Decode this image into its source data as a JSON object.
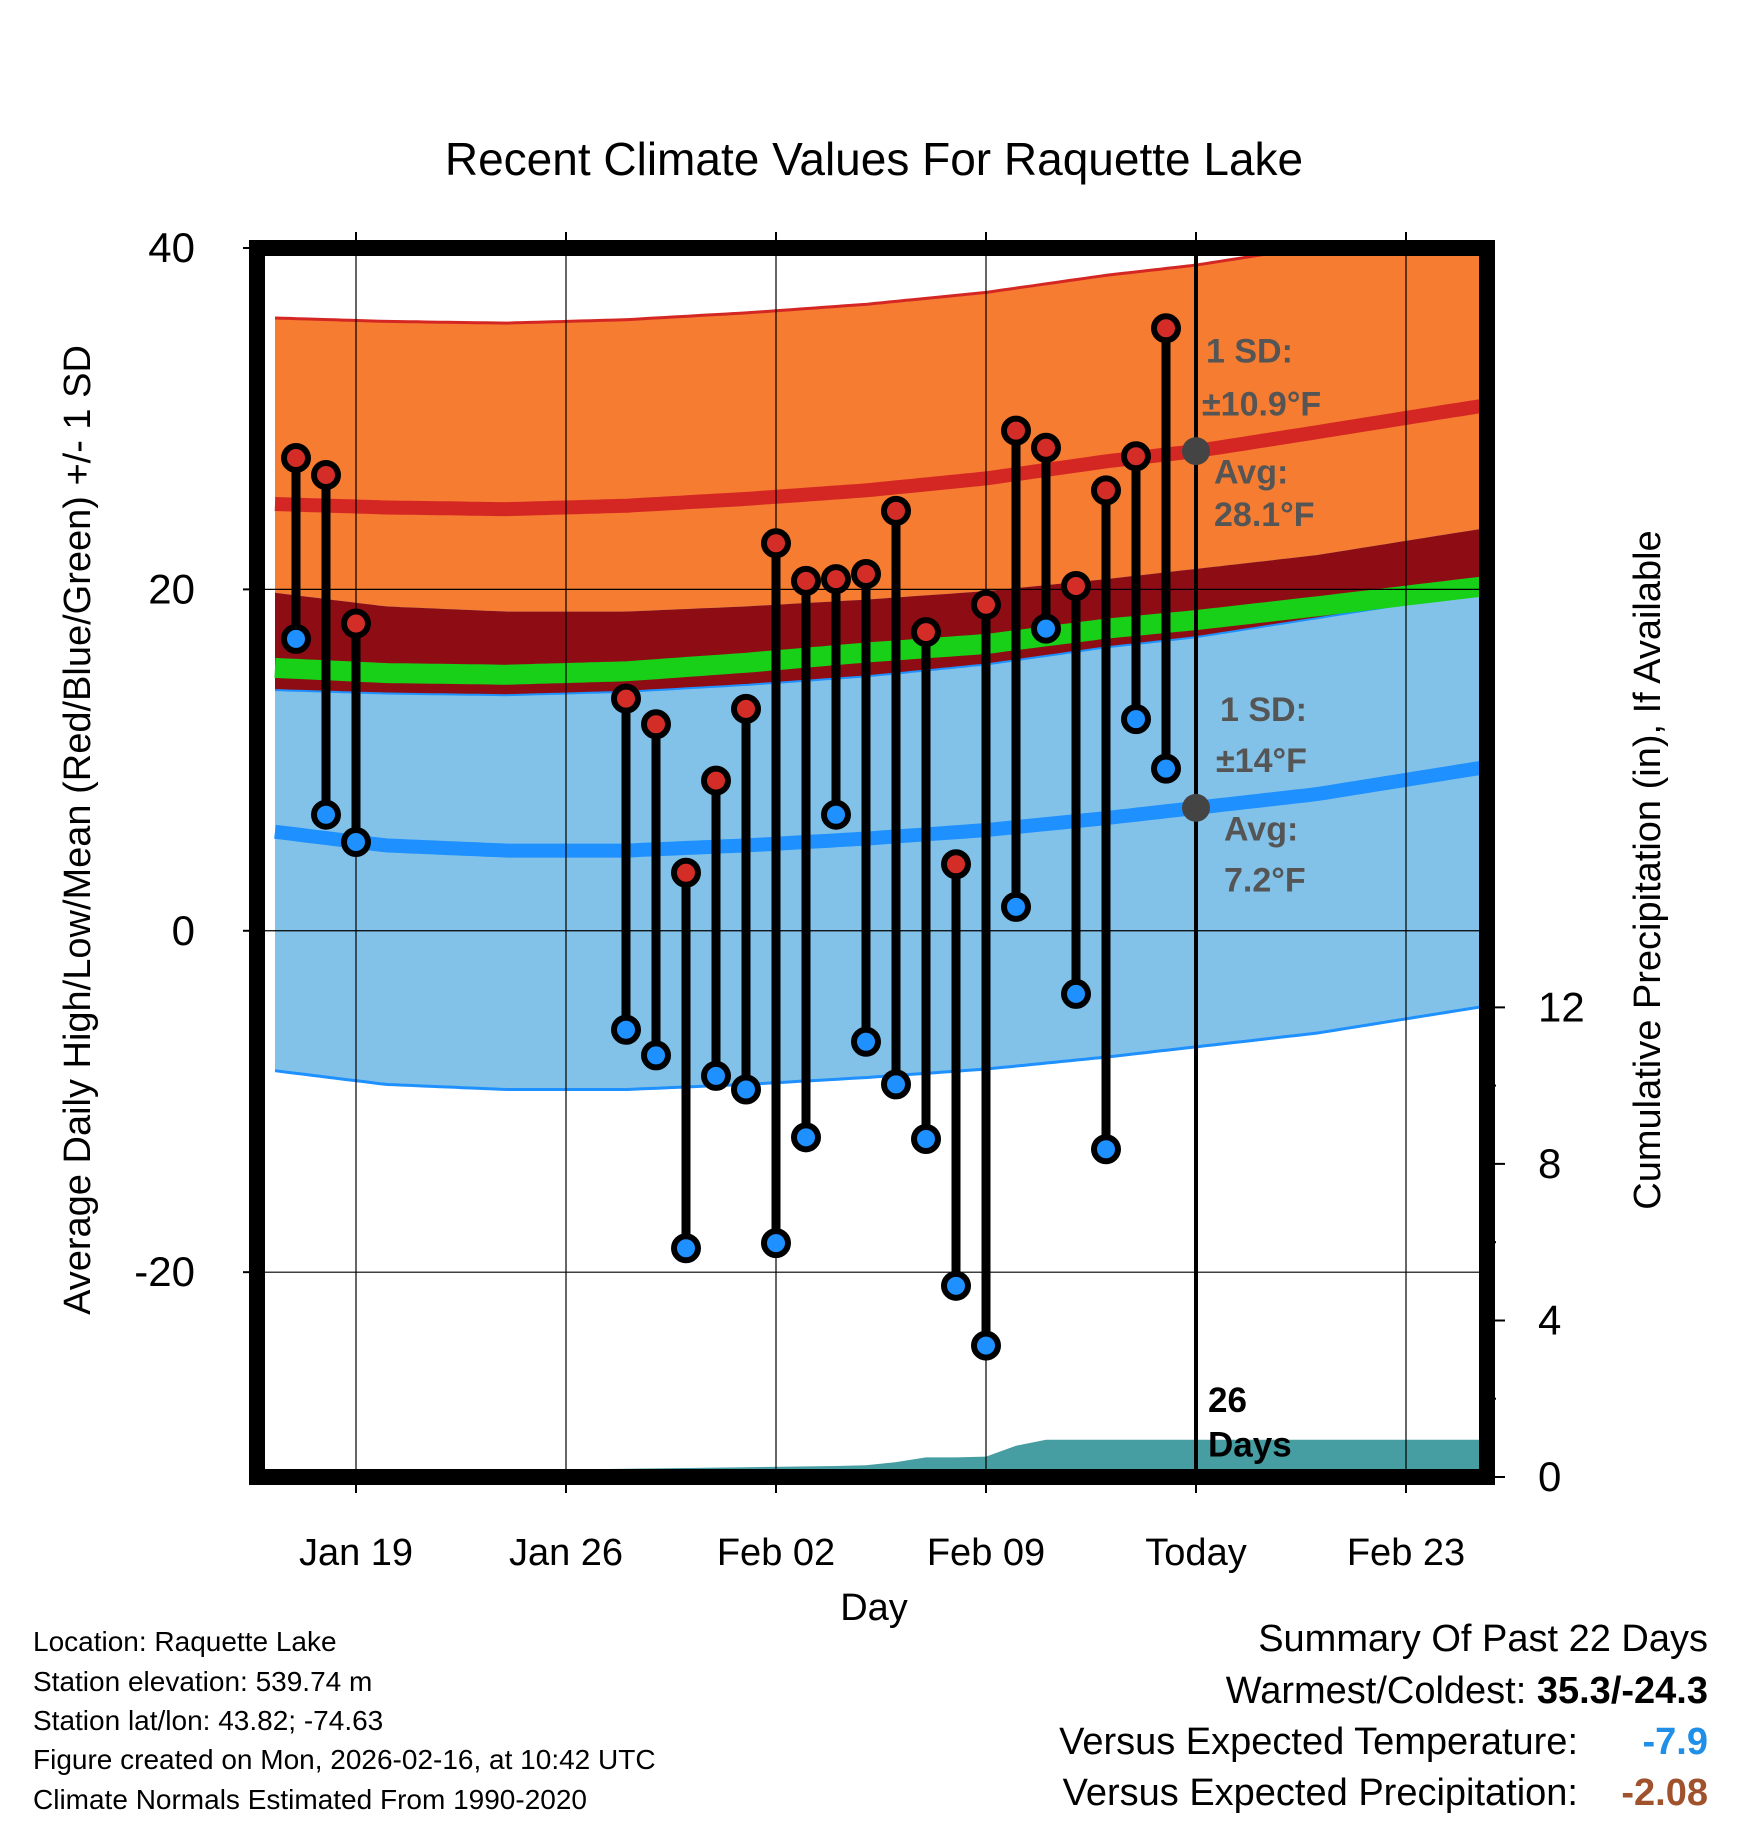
{
  "chart_data": {
    "type": "line",
    "title": "Recent Climate Values For Raquette Lake",
    "xlabel": "Day",
    "ylabel": "Average Daily High/Low/Mean (Red/Blue/Green) +/- 1 SD",
    "y2label": "Cumulative Precipitation (in), If Available",
    "x_ticks": [
      {
        "day": 0,
        "label": "Jan 19"
      },
      {
        "day": 7,
        "label": "Jan 26"
      },
      {
        "day": 14,
        "label": "Feb 02"
      },
      {
        "day": 21,
        "label": "Feb 09"
      },
      {
        "day": 28,
        "label": "Today"
      },
      {
        "day": 35,
        "label": "Feb 23"
      }
    ],
    "x_range": [
      -3.3,
      37.7
    ],
    "ylim": [
      -32,
      40
    ],
    "y_ticks": [
      -20,
      0,
      20,
      40
    ],
    "y2lim": [
      0,
      31.4
    ],
    "y2_ticks": [
      0,
      4,
      8,
      12
    ],
    "today_day": 28,
    "normal_days": [
      -2.7,
      1,
      5,
      9,
      13,
      17,
      21,
      25,
      28,
      32,
      37.7
    ],
    "normal_high": [
      25.0,
      24.8,
      24.7,
      24.9,
      25.3,
      25.8,
      26.5,
      27.5,
      28.1,
      29.2,
      30.8
    ],
    "normal_low": [
      5.8,
      5.0,
      4.7,
      4.7,
      5.0,
      5.4,
      5.9,
      6.6,
      7.2,
      8.0,
      9.6
    ],
    "normal_mean": [
      15.4,
      15.1,
      15.0,
      15.2,
      15.7,
      16.3,
      16.8,
      17.7,
      18.2,
      19.0,
      20.2
    ],
    "high_sd": 10.9,
    "low_sd": 14,
    "observations": [
      {
        "day": -2,
        "high": 27.7,
        "low": 17.1
      },
      {
        "day": -1,
        "high": 26.7,
        "low": 6.8
      },
      {
        "day": 0,
        "high": 18.0,
        "low": 5.2
      },
      {
        "day": 9,
        "high": 13.6,
        "low": -5.8
      },
      {
        "day": 10,
        "high": 12.1,
        "low": -7.3
      },
      {
        "day": 11,
        "high": 3.4,
        "low": -18.6
      },
      {
        "day": 12,
        "high": 8.8,
        "low": -8.5
      },
      {
        "day": 13,
        "high": 13.0,
        "low": -9.3
      },
      {
        "day": 14,
        "high": 22.7,
        "low": -18.3
      },
      {
        "day": 15,
        "high": 20.5,
        "low": -12.1
      },
      {
        "day": 16,
        "high": 20.6,
        "low": 6.8
      },
      {
        "day": 17,
        "high": 20.9,
        "low": -6.5
      },
      {
        "day": 18,
        "high": 24.6,
        "low": -9.0
      },
      {
        "day": 19,
        "high": 17.5,
        "low": -12.2
      },
      {
        "day": 20,
        "high": 3.9,
        "low": -20.8
      },
      {
        "day": 21,
        "high": 19.1,
        "low": -24.3
      },
      {
        "day": 22,
        "high": 29.3,
        "low": 1.4
      },
      {
        "day": 23,
        "high": 28.3,
        "low": 17.7
      },
      {
        "day": 24,
        "high": 20.2,
        "low": -3.7
      },
      {
        "day": 25,
        "high": 25.8,
        "low": -12.8
      },
      {
        "day": 26,
        "high": 27.8,
        "low": 12.4
      },
      {
        "day": 27,
        "high": 35.3,
        "low": 9.5
      }
    ],
    "precip_days": [
      -3.3,
      0,
      3,
      6,
      10,
      13,
      16,
      17,
      18,
      19,
      20,
      21,
      22,
      23,
      28,
      37.7
    ],
    "precip_values": [
      0,
      0,
      0.1,
      0.18,
      0.22,
      0.25,
      0.28,
      0.3,
      0.38,
      0.5,
      0.5,
      0.52,
      0.8,
      0.95,
      0.95,
      0.95
    ],
    "annotations": {
      "high_sd_label": "1 SD:",
      "high_sd_value": "±10.9°F",
      "high_avg_label": "Avg:",
      "high_avg_value": "28.1°F",
      "low_sd_label": "1 SD:",
      "low_sd_value": "±14°F",
      "low_avg_label": "Avg:",
      "low_avg_value": "7.2°F",
      "days_count": "26",
      "days_word": "Days"
    },
    "colors": {
      "high_band": "#f57c30",
      "overlap_band": "#8e0d15",
      "low_band": "#82c2e8",
      "high_line": "#d42724",
      "low_line": "#1e90ff",
      "mean_line": "#17d017",
      "precip_fill": "#469ea2",
      "high_marker": "#d42d27",
      "low_marker": "#1e90ff",
      "avg_marker": "#444444",
      "annotation_text": "#555555"
    }
  },
  "info": {
    "location": "Location: Raquette Lake",
    "elevation": "Station elevation: 539.74 m",
    "latlon": "Station lat/lon: 43.82; -74.63",
    "created": "Figure created on Mon, 2026-02-16, at 10:42 UTC",
    "normals": "Climate Normals Estimated From 1990-2020"
  },
  "summary": {
    "heading": "Summary Of Past 22 Days",
    "warm_cold_label": "Warmest/Coldest: ",
    "warm_cold_value": "35.3/-24.3",
    "temp_label": "Versus Expected Temperature:",
    "temp_value": "-7.9",
    "precip_label": "Versus Expected Precipitation:",
    "precip_value": "-2.08"
  }
}
